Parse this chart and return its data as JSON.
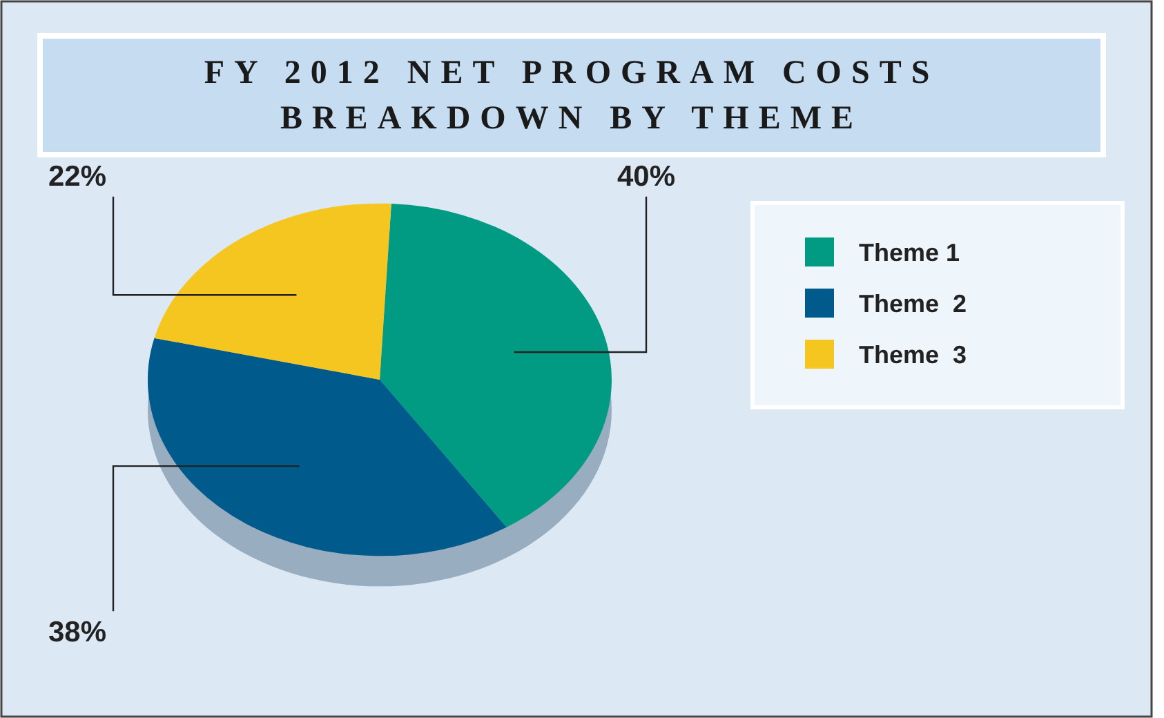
{
  "chart_data": {
    "type": "pie",
    "title": "FY 2012 NET PROGRAM COSTS BREAKDOWN BY THEME",
    "categories": [
      "Theme 1",
      "Theme  2",
      "Theme  3"
    ],
    "values": [
      40,
      38,
      22
    ],
    "colors": [
      "#009b82",
      "#005a8c",
      "#f5c520"
    ],
    "value_labels": [
      "40%",
      "38%",
      "22%"
    ],
    "legend": "right"
  }
}
